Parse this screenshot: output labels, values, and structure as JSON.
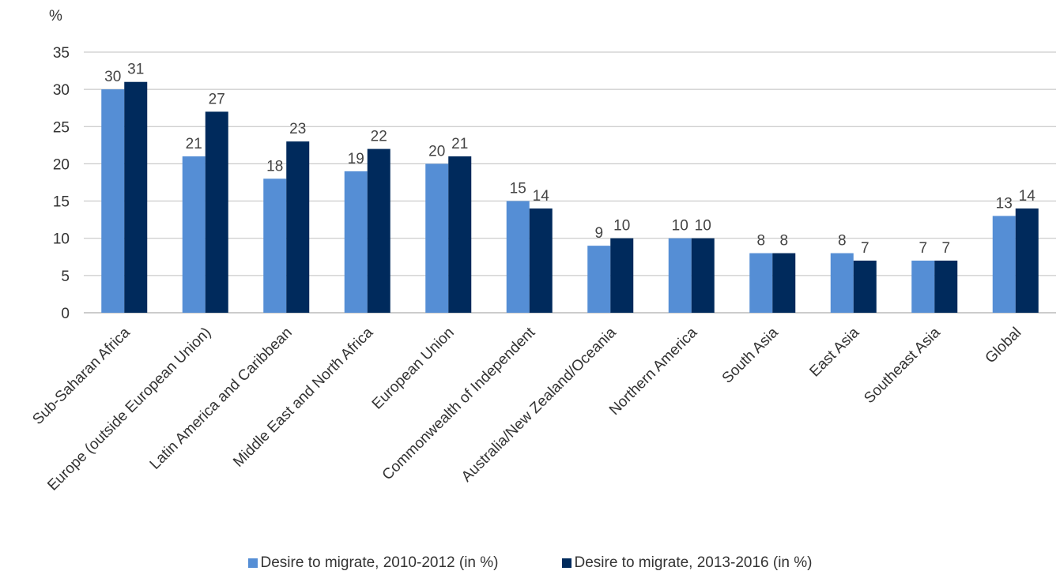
{
  "chart_data": {
    "type": "bar",
    "y_unit_label": "%",
    "categories": [
      "Sub-Saharan Africa",
      "Europe (outside European Union)",
      "Latin America and Caribbean",
      "Middle East and North Africa",
      "European Union",
      "Commonwealth of Independent",
      "Australia/New Zealand/Oceania",
      "Northern America",
      "South Asia",
      "East Asia",
      "Southeast Asia",
      "Global"
    ],
    "series": [
      {
        "name": "Desire to migrate, 2010-2012 (in %)",
        "color": "#558ed5",
        "values": [
          30,
          21,
          18,
          19,
          20,
          15,
          9,
          10,
          8,
          8,
          7,
          13
        ]
      },
      {
        "name": "Desire to migrate, 2013-2016 (in %)",
        "color": "#002a5c",
        "values": [
          31,
          27,
          23,
          22,
          21,
          14,
          10,
          10,
          8,
          7,
          7,
          14
        ]
      }
    ],
    "ylim": [
      0,
      35
    ],
    "yticks": [
      0,
      5,
      10,
      15,
      20,
      25,
      30,
      35
    ],
    "grid": true,
    "data_labels": true,
    "legend_position": "bottom"
  }
}
